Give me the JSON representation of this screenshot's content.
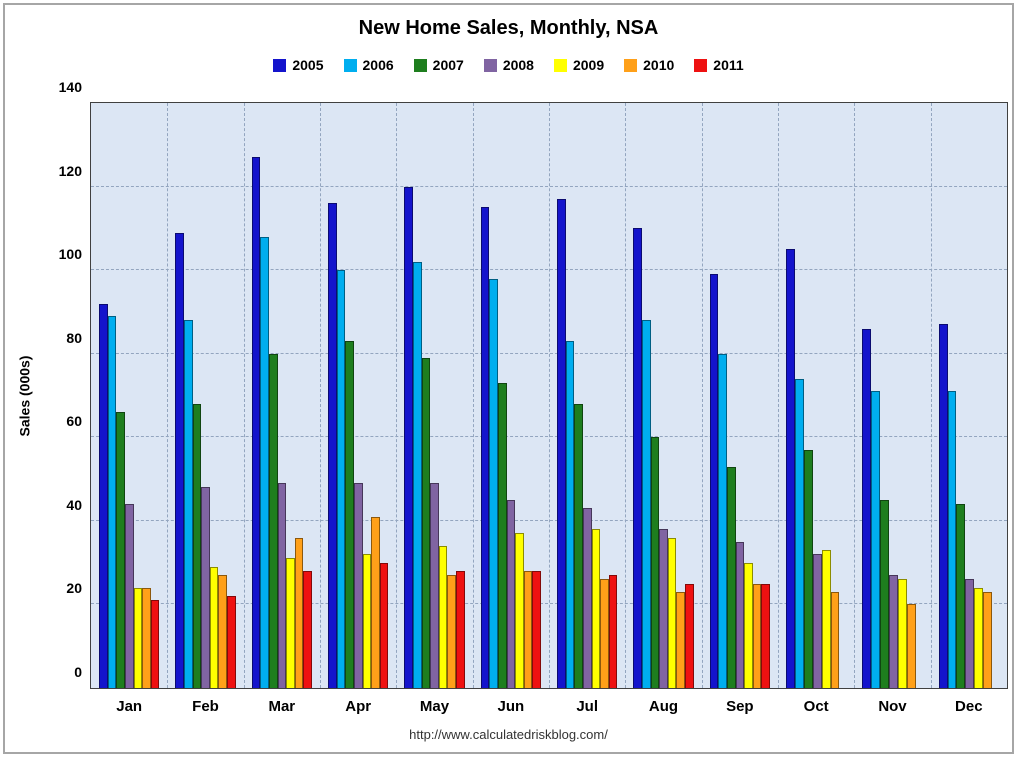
{
  "title": "New Home Sales, Monthly, NSA",
  "footer_url": "http://www.calculatedriskblog.com/",
  "chart_data": {
    "type": "bar",
    "title": "New Home Sales, Monthly, NSA",
    "xlabel": "",
    "ylabel": "Sales (000s)",
    "ylim": [
      0,
      140
    ],
    "ytick_step": 20,
    "grid": true,
    "legend_position": "top",
    "plot_bg": "#dce6f4",
    "categories": [
      "Jan",
      "Feb",
      "Mar",
      "Apr",
      "May",
      "Jun",
      "Jul",
      "Aug",
      "Sep",
      "Oct",
      "Nov",
      "Dec"
    ],
    "series": [
      {
        "name": "2005",
        "color": "#1414cc",
        "values": [
          92,
          109,
          127,
          116,
          120,
          115,
          117,
          110,
          99,
          105,
          86,
          87
        ]
      },
      {
        "name": "2006",
        "color": "#00aeef",
        "values": [
          89,
          88,
          108,
          100,
          102,
          98,
          83,
          88,
          80,
          74,
          71,
          71
        ]
      },
      {
        "name": "2007",
        "color": "#1e7e1e",
        "values": [
          66,
          68,
          80,
          83,
          79,
          73,
          68,
          60,
          53,
          57,
          45,
          44
        ]
      },
      {
        "name": "2008",
        "color": "#8064a2",
        "values": [
          44,
          48,
          49,
          49,
          49,
          45,
          43,
          38,
          35,
          32,
          27,
          26
        ]
      },
      {
        "name": "2009",
        "color": "#ffff00",
        "values": [
          24,
          29,
          31,
          32,
          34,
          37,
          38,
          36,
          30,
          33,
          26,
          24
        ]
      },
      {
        "name": "2010",
        "color": "#ffa019",
        "values": [
          24,
          27,
          36,
          41,
          27,
          28,
          26,
          23,
          25,
          23,
          20,
          23
        ]
      },
      {
        "name": "2011",
        "color": "#ee1111",
        "values": [
          21,
          22,
          28,
          30,
          28,
          28,
          27,
          25,
          25,
          null,
          null,
          null
        ]
      }
    ]
  }
}
